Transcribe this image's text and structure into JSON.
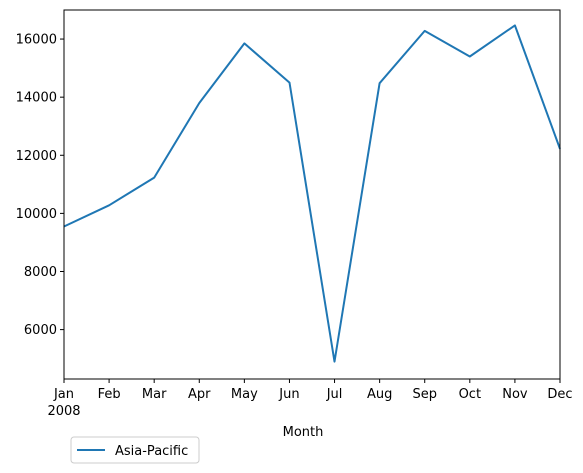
{
  "chart_data": {
    "type": "line",
    "title": "",
    "xlabel": "Month",
    "ylabel": "",
    "categories": [
      "Jan",
      "Feb",
      "Mar",
      "Apr",
      "May",
      "Jun",
      "Jul",
      "Aug",
      "Sep",
      "Oct",
      "Nov",
      "Dec"
    ],
    "year_label": "2008",
    "series": [
      {
        "name": "Asia-Pacific",
        "color": "#1f77b4",
        "values": [
          9550,
          10280,
          11230,
          13800,
          15850,
          14500,
          4900,
          14480,
          16280,
          15400,
          16470,
          12220
        ]
      }
    ],
    "ylim": [
      4300,
      17000
    ],
    "yticks": [
      6000,
      8000,
      10000,
      12000,
      14000,
      16000
    ],
    "grid": false,
    "legend_position": "bottom-left"
  }
}
